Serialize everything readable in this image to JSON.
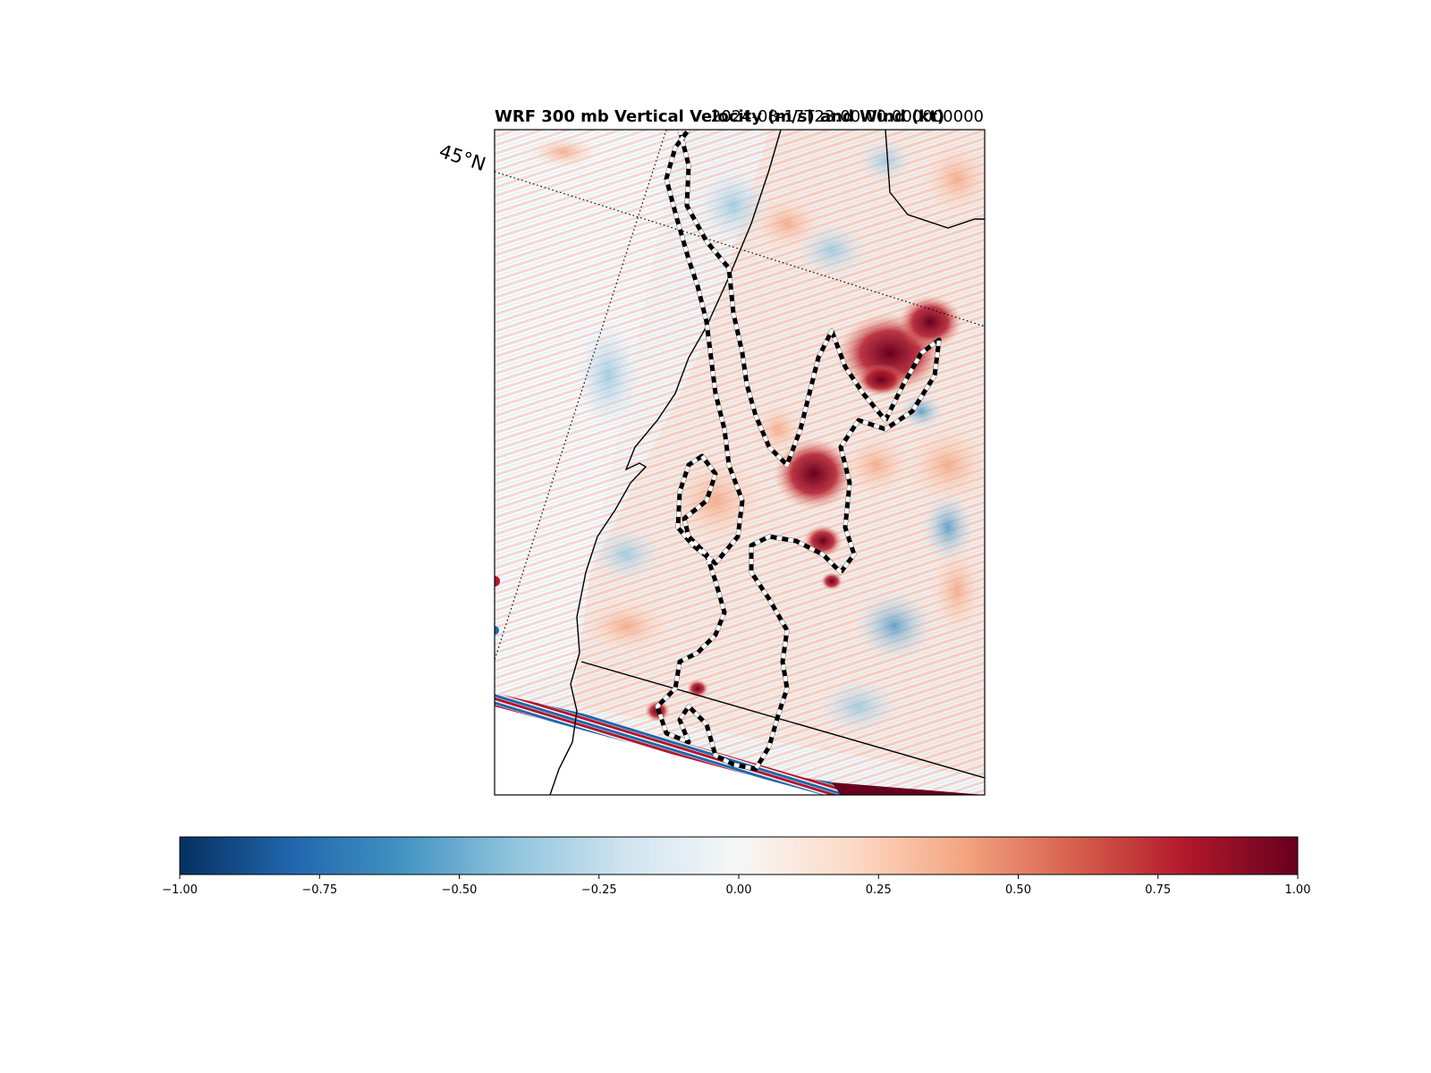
{
  "chart_data": {
    "type": "heatmap",
    "title_left": "WRF 300 mb Vertical Velocity (m/s) and Wind (kt)",
    "title_right": "2024-08-17T23:00:00.000000000",
    "map": {
      "latitude_label": "45°N",
      "field": "300 mb vertical velocity",
      "features": [
        "coastline",
        "state borders",
        "gridlines",
        "wind contour"
      ]
    },
    "colorbar": {
      "colormap": "RdBu_r",
      "vmin": -1.0,
      "vmax": 1.0,
      "ticks": [
        -1.0,
        -0.75,
        -0.5,
        -0.25,
        0.0,
        0.25,
        0.5,
        0.75,
        1.0
      ],
      "tick_labels": [
        "−1.00",
        "−0.75",
        "−0.50",
        "−0.25",
        "0.00",
        "0.25",
        "0.50",
        "0.75",
        "1.00"
      ],
      "colors": [
        "#053061",
        "#2166ac",
        "#4393c3",
        "#92c5de",
        "#d1e5f0",
        "#f7f7f7",
        "#fddbc7",
        "#f4a582",
        "#d6604d",
        "#b2182b",
        "#67001f"
      ]
    }
  }
}
